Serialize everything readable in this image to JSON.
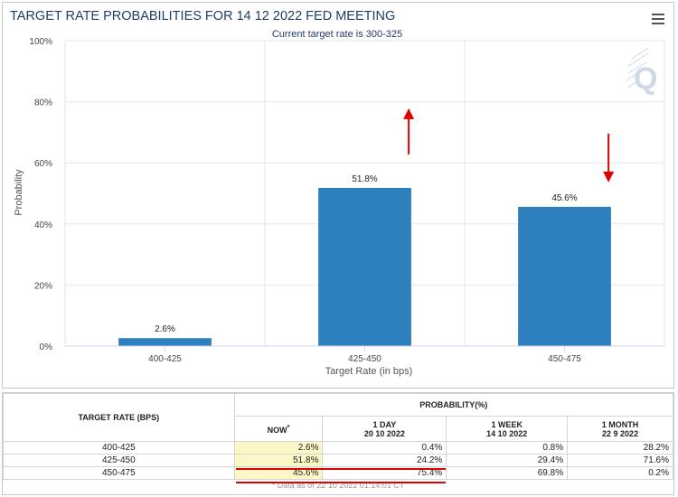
{
  "chart_data": {
    "type": "bar",
    "title": "TARGET RATE PROBABILITIES FOR 14 12 2022 FED MEETING",
    "subtitle": "Current target rate is 300-325",
    "xlabel": "Target Rate (in bps)",
    "ylabel": "Probability",
    "categories": [
      "400-425",
      "425-450",
      "450-475"
    ],
    "values": [
      2.6,
      51.8,
      45.6
    ],
    "data_labels": [
      "2.6%",
      "51.8%",
      "45.6%"
    ],
    "ylim": [
      0,
      100
    ],
    "yticks": [
      0,
      20,
      40,
      60,
      80,
      100
    ],
    "ytick_labels": [
      "0%",
      "20%",
      "40%",
      "60%",
      "80%",
      "100%"
    ],
    "bar_color": "#2e7fbe",
    "annotations": [
      {
        "category": "425-450",
        "direction": "up",
        "color": "#e00000"
      },
      {
        "category": "450-475",
        "direction": "down",
        "color": "#e00000"
      }
    ]
  },
  "logo_letter": "Q",
  "table": {
    "col_target": "TARGET RATE (BPS)",
    "col_prob": "PROBABILITY(%)",
    "sub_headers": [
      {
        "line1": "NOW",
        "line2": ""
      },
      {
        "line1": "1 DAY",
        "line2": "20 10 2022"
      },
      {
        "line1": "1 WEEK",
        "line2": "14 10 2022"
      },
      {
        "line1": "1 MONTH",
        "line2": "22 9 2022"
      }
    ],
    "now_marker": "*",
    "rows": [
      {
        "rate": "400-425",
        "now": "2.6%",
        "day": "0.4%",
        "week": "0.8%",
        "month": "28.2%"
      },
      {
        "rate": "425-450",
        "now": "51.8%",
        "day": "24.2%",
        "week": "29.4%",
        "month": "71.6%"
      },
      {
        "rate": "450-475",
        "now": "45.6%",
        "day": "75.4%",
        "week": "69.8%",
        "month": "0.2%"
      }
    ],
    "footnote": "* Data as of 22 10 2022 01:14:01 CT"
  }
}
